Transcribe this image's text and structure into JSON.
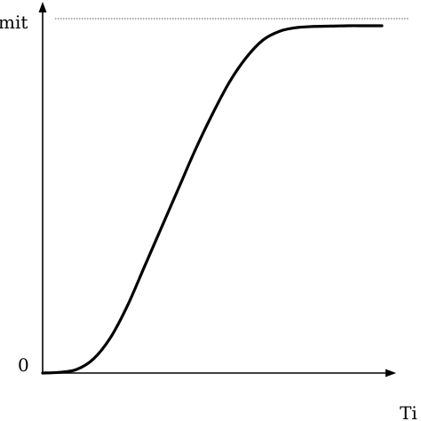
{
  "chart_data": {
    "type": "line",
    "title": "",
    "xlabel": "Ti",
    "ylabel": "",
    "y_tick_labels": [
      {
        "text": "0",
        "value": 0
      }
    ],
    "upper_limit_label": "mit",
    "upper_limit_value": 1.0,
    "x_range": [
      0,
      1
    ],
    "y_range": [
      0,
      1
    ],
    "series": [
      {
        "x": [
          0.0,
          0.05,
          0.1,
          0.15,
          0.2,
          0.25,
          0.3,
          0.35,
          0.4,
          0.45,
          0.5,
          0.55,
          0.6,
          0.65,
          0.7,
          0.75,
          0.8,
          0.85,
          0.9,
          0.95,
          1.0
        ],
        "y": [
          0.0,
          0.002,
          0.01,
          0.04,
          0.1,
          0.19,
          0.3,
          0.41,
          0.52,
          0.63,
          0.73,
          0.82,
          0.89,
          0.94,
          0.965,
          0.975,
          0.978,
          0.979,
          0.98,
          0.98,
          0.98
        ]
      }
    ],
    "grid": false,
    "legend": "none",
    "colors": {
      "line": "#000000",
      "axis": "#000000",
      "limit_line": "#555555"
    }
  }
}
